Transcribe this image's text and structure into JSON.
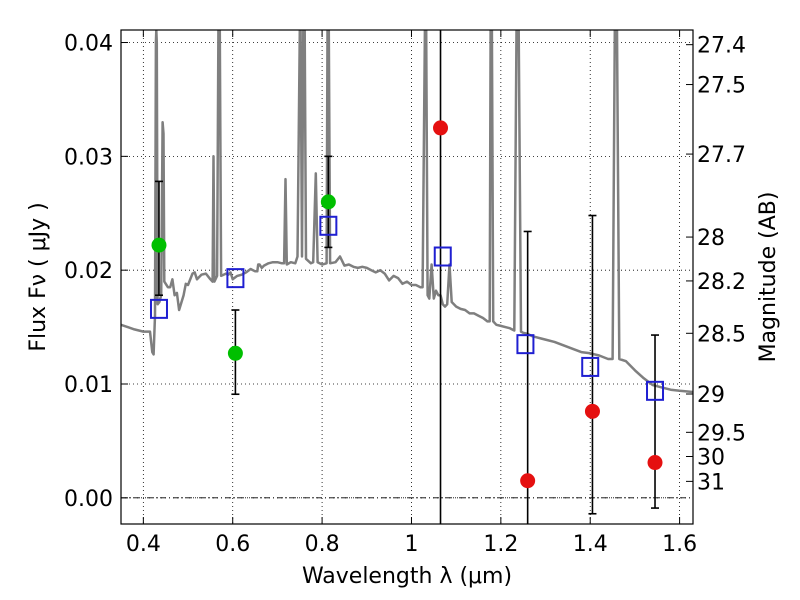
{
  "chart_data": {
    "type": "scatter",
    "xlabel": "Wavelength  λ (μm)",
    "ylabel": "Flux  Fν  ( μJy )",
    "ylabel_right": "Magnitude (AB)",
    "xlim": [
      0.35,
      1.63
    ],
    "ylim": [
      -0.0023,
      0.0411
    ],
    "grid": true,
    "x_ticks": [
      0.4,
      0.6,
      0.8,
      1.0,
      1.2,
      1.4,
      1.6
    ],
    "x_tick_labels": [
      "0.4",
      "0.6",
      "0.8",
      "1",
      "1.2",
      "1.4",
      "1.6"
    ],
    "y_ticks": [
      0.0,
      0.01,
      0.02,
      0.03,
      0.04
    ],
    "y_tick_labels": [
      "0.00",
      "0.01",
      "0.02",
      "0.03",
      "0.04"
    ],
    "right_ticks": [
      {
        "label": "27.4",
        "mag": 27.4
      },
      {
        "label": "27.5",
        "mag": 27.5
      },
      {
        "label": "27.7",
        "mag": 27.7
      },
      {
        "label": "28",
        "mag": 28.0
      },
      {
        "label": "28.2",
        "mag": 28.2
      },
      {
        "label": "28.5",
        "mag": 28.5
      },
      {
        "label": "29",
        "mag": 29.0
      },
      {
        "label": "29.5",
        "mag": 29.5
      },
      {
        "label": "30",
        "mag": 30.0
      },
      {
        "label": "31",
        "mag": 31.0
      }
    ],
    "series": [
      {
        "color": "#7f7f7f",
        "style": "line",
        "points": [
          [
            0.35,
            0.0152
          ],
          [
            0.38,
            0.0148
          ],
          [
            0.4,
            0.0146
          ],
          [
            0.415,
            0.0146
          ],
          [
            0.42,
            0.0128
          ],
          [
            0.423,
            0.0126
          ],
          [
            0.426,
            0.016
          ],
          [
            0.428,
            0.04
          ],
          [
            0.429,
            0.0411
          ],
          [
            0.43,
            0.04
          ],
          [
            0.432,
            0.017
          ],
          [
            0.436,
            0.0172
          ],
          [
            0.44,
            0.0178
          ],
          [
            0.443,
            0.033
          ],
          [
            0.445,
            0.032
          ],
          [
            0.447,
            0.019
          ],
          [
            0.455,
            0.0185
          ],
          [
            0.46,
            0.0185
          ],
          [
            0.465,
            0.0192
          ],
          [
            0.47,
            0.0178
          ],
          [
            0.475,
            0.018
          ],
          [
            0.48,
            0.0165
          ],
          [
            0.49,
            0.0178
          ],
          [
            0.495,
            0.0188
          ],
          [
            0.5,
            0.0187
          ],
          [
            0.51,
            0.0197
          ],
          [
            0.515,
            0.0198
          ],
          [
            0.52,
            0.0192
          ],
          [
            0.53,
            0.0196
          ],
          [
            0.54,
            0.0197
          ],
          [
            0.55,
            0.0192
          ],
          [
            0.555,
            0.019
          ],
          [
            0.557,
            0.03
          ],
          [
            0.559,
            0.019
          ],
          [
            0.565,
            0.0195
          ],
          [
            0.568,
            0.0411
          ],
          [
            0.571,
            0.0411
          ],
          [
            0.574,
            0.0195
          ],
          [
            0.585,
            0.0197
          ],
          [
            0.59,
            0.0196
          ],
          [
            0.595,
            0.0198
          ],
          [
            0.6,
            0.0192
          ],
          [
            0.61,
            0.0195
          ],
          [
            0.62,
            0.0196
          ],
          [
            0.63,
            0.0198
          ],
          [
            0.64,
            0.0201
          ],
          [
            0.65,
            0.0199
          ],
          [
            0.655,
            0.0199
          ],
          [
            0.657,
            0.0205
          ],
          [
            0.66,
            0.0205
          ],
          [
            0.665,
            0.0202
          ],
          [
            0.67,
            0.0204
          ],
          [
            0.68,
            0.0206
          ],
          [
            0.69,
            0.0207
          ],
          [
            0.7,
            0.0207
          ],
          [
            0.71,
            0.0206
          ],
          [
            0.715,
            0.0206
          ],
          [
            0.718,
            0.028
          ],
          [
            0.721,
            0.0205
          ],
          [
            0.73,
            0.0207
          ],
          [
            0.74,
            0.0206
          ],
          [
            0.745,
            0.0212
          ],
          [
            0.75,
            0.0411
          ],
          [
            0.752,
            0.0411
          ],
          [
            0.755,
            0.0212
          ],
          [
            0.758,
            0.0411
          ],
          [
            0.761,
            0.0411
          ],
          [
            0.764,
            0.021
          ],
          [
            0.775,
            0.0206
          ],
          [
            0.78,
            0.0207
          ],
          [
            0.786,
            0.0285
          ],
          [
            0.79,
            0.0207
          ],
          [
            0.8,
            0.0205
          ],
          [
            0.81,
            0.0206
          ],
          [
            0.812,
            0.0411
          ],
          [
            0.815,
            0.0411
          ],
          [
            0.818,
            0.0206
          ],
          [
            0.83,
            0.0207
          ],
          [
            0.84,
            0.0212
          ],
          [
            0.85,
            0.0204
          ],
          [
            0.86,
            0.0205
          ],
          [
            0.87,
            0.0203
          ],
          [
            0.88,
            0.0202
          ],
          [
            0.89,
            0.0203
          ],
          [
            0.9,
            0.0202
          ],
          [
            0.91,
            0.02
          ],
          [
            0.92,
            0.0198
          ],
          [
            0.93,
            0.02
          ],
          [
            0.94,
            0.0197
          ],
          [
            0.95,
            0.0191
          ],
          [
            0.96,
            0.0195
          ],
          [
            0.97,
            0.0193
          ],
          [
            0.98,
            0.0188
          ],
          [
            0.99,
            0.019
          ],
          [
            1.0,
            0.0187
          ],
          [
            1.01,
            0.0187
          ],
          [
            1.02,
            0.0185
          ],
          [
            1.025,
            0.0185
          ],
          [
            1.03,
            0.0411
          ],
          [
            1.033,
            0.0411
          ],
          [
            1.036,
            0.0178
          ],
          [
            1.04,
            0.0175
          ],
          [
            1.045,
            0.0205
          ],
          [
            1.05,
            0.0175
          ],
          [
            1.055,
            0.0182
          ],
          [
            1.06,
            0.0178
          ],
          [
            1.065,
            0.0178
          ],
          [
            1.07,
            0.017
          ],
          [
            1.075,
            0.0168
          ],
          [
            1.08,
            0.017
          ],
          [
            1.085,
            0.0205
          ],
          [
            1.09,
            0.0172
          ],
          [
            1.1,
            0.0168
          ],
          [
            1.11,
            0.0166
          ],
          [
            1.12,
            0.0165
          ],
          [
            1.13,
            0.0162
          ],
          [
            1.14,
            0.0162
          ],
          [
            1.15,
            0.016
          ],
          [
            1.16,
            0.0158
          ],
          [
            1.17,
            0.0155
          ],
          [
            1.175,
            0.0155
          ],
          [
            1.177,
            0.0411
          ],
          [
            1.18,
            0.0411
          ],
          [
            1.183,
            0.0155
          ],
          [
            1.19,
            0.0152
          ],
          [
            1.2,
            0.0151
          ],
          [
            1.21,
            0.015
          ],
          [
            1.22,
            0.0149
          ],
          [
            1.23,
            0.0147
          ],
          [
            1.235,
            0.0411
          ],
          [
            1.24,
            0.0411
          ],
          [
            1.245,
            0.0146
          ],
          [
            1.25,
            0.0145
          ],
          [
            1.26,
            0.0144
          ],
          [
            1.27,
            0.0142
          ],
          [
            1.28,
            0.0141
          ],
          [
            1.29,
            0.014
          ],
          [
            1.3,
            0.0139
          ],
          [
            1.32,
            0.0137
          ],
          [
            1.34,
            0.0134
          ],
          [
            1.36,
            0.0131
          ],
          [
            1.38,
            0.0128
          ],
          [
            1.4,
            0.0127
          ],
          [
            1.42,
            0.0125
          ],
          [
            1.44,
            0.0122
          ],
          [
            1.45,
            0.0122
          ],
          [
            1.455,
            0.0411
          ],
          [
            1.46,
            0.0411
          ],
          [
            1.465,
            0.0122
          ],
          [
            1.48,
            0.012
          ],
          [
            1.5,
            0.0112
          ],
          [
            1.52,
            0.0105
          ],
          [
            1.54,
            0.0099
          ],
          [
            1.56,
            0.0097
          ],
          [
            1.58,
            0.0095
          ],
          [
            1.6,
            0.0094
          ],
          [
            1.63,
            0.0093
          ]
        ]
      },
      {
        "color": "#1f1fd1",
        "style": "open-square",
        "points": [
          [
            0.435,
            0.0166
          ],
          [
            0.606,
            0.0193
          ],
          [
            0.814,
            0.0239
          ],
          [
            1.07,
            0.0212
          ],
          [
            1.255,
            0.0135
          ],
          [
            1.4,
            0.0115
          ],
          [
            1.545,
            0.0094
          ]
        ]
      },
      {
        "color": "#00bf00",
        "style": "filled-circle",
        "points": [
          [
            0.435,
            0.0222
          ],
          [
            0.606,
            0.0127
          ],
          [
            0.814,
            0.026
          ]
        ],
        "yerr_low": [
          0.0044,
          0.0036,
          0.004
        ],
        "yerr_high": [
          0.0056,
          0.0038,
          0.004
        ]
      },
      {
        "color": "#e51010",
        "style": "filled-circle",
        "points": [
          [
            1.065,
            0.0325
          ],
          [
            1.26,
            0.0015
          ],
          [
            1.405,
            0.0076
          ],
          [
            1.545,
            0.0031
          ]
        ],
        "yerr_low": [
          0.035,
          0.004,
          0.009,
          0.004
        ],
        "yerr_high": [
          0.009,
          0.0219,
          0.0172,
          0.0112
        ]
      }
    ]
  }
}
